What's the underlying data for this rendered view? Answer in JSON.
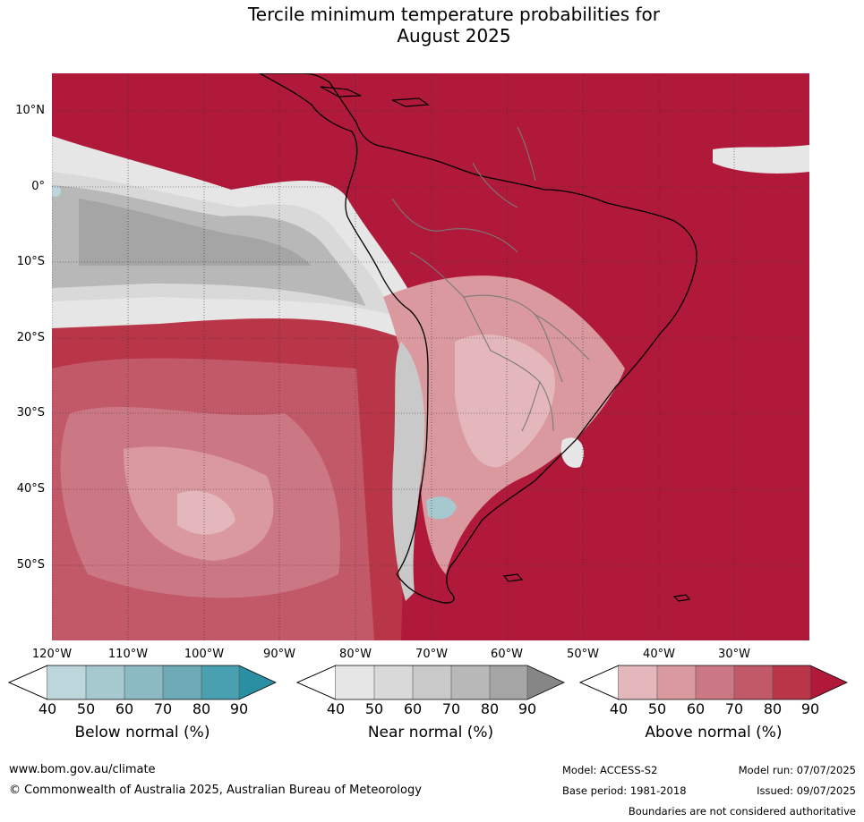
{
  "title_line1": "Tercile minimum temperature probabilities for",
  "title_line2": "August 2025",
  "map": {
    "lat_labels": [
      "10°N",
      "0°",
      "10°S",
      "20°S",
      "30°S",
      "40°S",
      "50°S"
    ],
    "lon_labels": [
      "120°W",
      "110°W",
      "100°W",
      "90°W",
      "80°W",
      "70°W",
      "60°W",
      "50°W",
      "40°W",
      "30°W"
    ]
  },
  "legend": {
    "below": {
      "title": "Below normal (%)",
      "ticks": [
        "40",
        "50",
        "60",
        "70",
        "80",
        "90"
      ],
      "colors": [
        "#bcd6dc",
        "#a6c8cf",
        "#8bbac3",
        "#6eabb7",
        "#48a0b0",
        "#2b8fa3"
      ]
    },
    "near": {
      "title": "Near normal (%)",
      "ticks": [
        "40",
        "50",
        "60",
        "70",
        "80",
        "90"
      ],
      "colors": [
        "#e6e6e6",
        "#d9d9d9",
        "#c9c9c9",
        "#b8b8b8",
        "#a5a5a5",
        "#868686"
      ]
    },
    "above": {
      "title": "Above normal (%)",
      "ticks": [
        "40",
        "50",
        "60",
        "70",
        "80",
        "90"
      ],
      "colors": [
        "#e3b7bc",
        "#d9999f",
        "#cc7884",
        "#c25969",
        "#b93648",
        "#b0193a"
      ]
    }
  },
  "footer": {
    "website": "www.bom.gov.au/climate",
    "copyright": "© Commonwealth of Australia 2025, Australian Bureau of Meteorology",
    "model": "Model: ACCESS-S2",
    "model_run": "Model run: 07/07/2025",
    "base_period": "Base period: 1981-2018",
    "issued": "Issued: 09/07/2025",
    "disclaimer": "Boundaries are not considered authoritative"
  }
}
